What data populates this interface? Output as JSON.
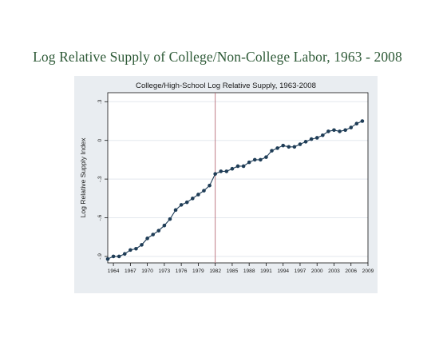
{
  "page": {
    "title": "Log Relative Supply of College/Non-College Labor, 1963 - 2008"
  },
  "chart_data": {
    "type": "line",
    "title": "College/High-School Log Relative Supply, 1963-2008",
    "xlabel": "",
    "ylabel": "Log Relative Supply Index",
    "xlim": [
      1963,
      2009
    ],
    "ylim": [
      -0.95,
      0.37
    ],
    "x_ticks": [
      1964,
      1967,
      1970,
      1973,
      1976,
      1979,
      1982,
      1985,
      1988,
      1991,
      1994,
      1997,
      2000,
      2003,
      2006,
      2009
    ],
    "y_ticks": [
      -0.9,
      -0.6,
      -0.3,
      0,
      0.3
    ],
    "y_tick_labels": [
      "-.9",
      "-.6",
      "-.3",
      "0",
      ".3"
    ],
    "reference_line_x": 1982,
    "grid": true,
    "series": [
      {
        "name": "",
        "color": "#1f3d57",
        "x": [
          1963,
          1964,
          1965,
          1966,
          1967,
          1968,
          1969,
          1970,
          1971,
          1972,
          1973,
          1974,
          1975,
          1976,
          1977,
          1978,
          1979,
          1980,
          1981,
          1982,
          1983,
          1984,
          1985,
          1986,
          1987,
          1988,
          1989,
          1990,
          1991,
          1992,
          1993,
          1994,
          1995,
          1996,
          1997,
          1998,
          1999,
          2000,
          2001,
          2002,
          2003,
          2004,
          2005,
          2006,
          2007,
          2008
        ],
        "values": [
          -0.92,
          -0.9,
          -0.9,
          -0.88,
          -0.85,
          -0.84,
          -0.81,
          -0.76,
          -0.73,
          -0.7,
          -0.66,
          -0.61,
          -0.54,
          -0.5,
          -0.48,
          -0.45,
          -0.42,
          -0.39,
          -0.35,
          -0.26,
          -0.24,
          -0.24,
          -0.22,
          -0.2,
          -0.2,
          -0.17,
          -0.15,
          -0.15,
          -0.13,
          -0.08,
          -0.06,
          -0.04,
          -0.05,
          -0.05,
          -0.03,
          -0.01,
          0.01,
          0.02,
          0.04,
          0.07,
          0.08,
          0.07,
          0.08,
          0.1,
          0.13,
          0.15
        ]
      }
    ]
  }
}
